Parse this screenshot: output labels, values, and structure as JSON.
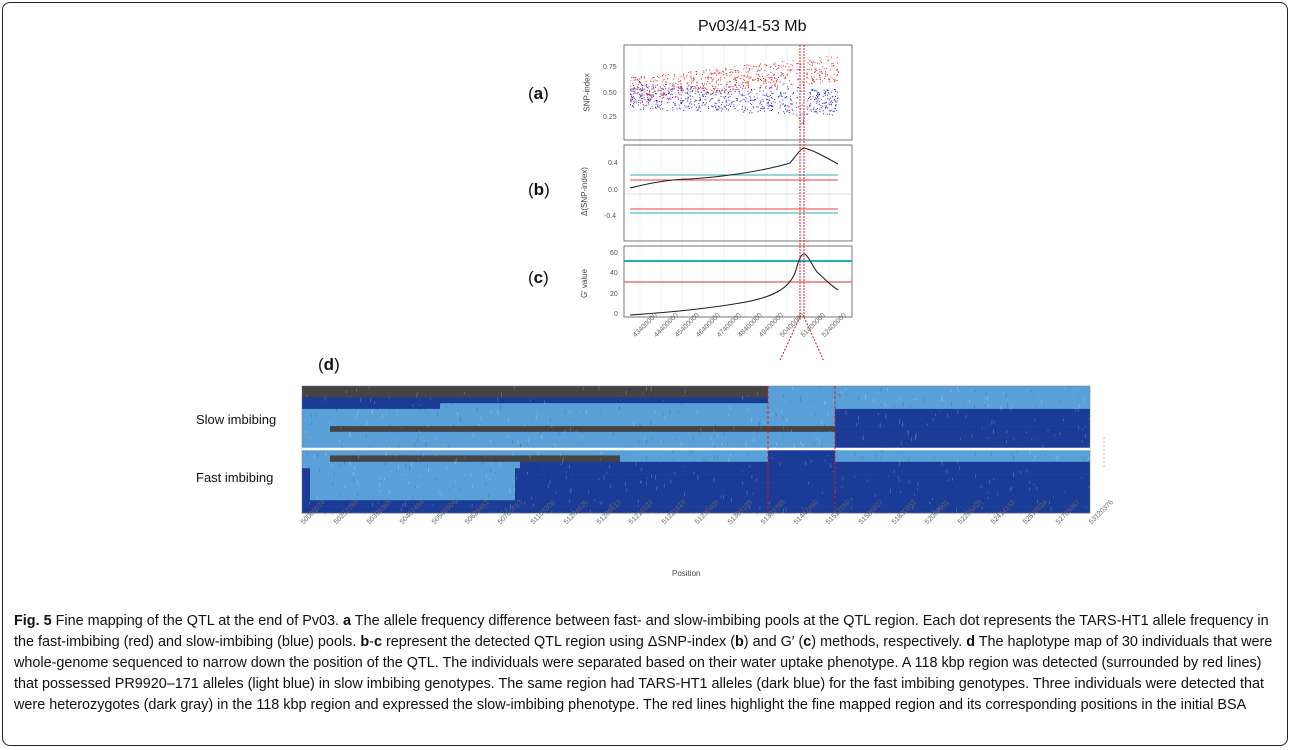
{
  "figure": {
    "title": "Pv03/41-53 Mb",
    "panels": {
      "a": "a",
      "b": "b",
      "c": "c",
      "d": "d"
    },
    "panel_a": {
      "ylabel": "SNP-index",
      "yticks": [
        "0.75",
        "0.50",
        "0.25"
      ]
    },
    "panel_b": {
      "ylabel": "Δ(SNP-index)",
      "yticks": [
        "0.4",
        "0.0",
        "-0.4"
      ]
    },
    "panel_c": {
      "ylabel": "G' value",
      "yticks": [
        "60",
        "40",
        "20",
        "0"
      ]
    },
    "panel_c_xticks": [
      "43400000",
      "44400000",
      "45400000",
      "46400000",
      "47400000",
      "48400000",
      "49400000",
      "50400000",
      "51400000",
      "52400000"
    ],
    "haplotype": {
      "group_slow": "Slow imbibing",
      "group_fast": "Fast imbibing",
      "xlabel": "Position",
      "positions": [
        "50000074",
        "50252789",
        "50395365",
        "50467484",
        "50545504",
        "50629451",
        "50760713",
        "51103306",
        "51204626",
        "51209613",
        "51216527",
        "51221618",
        "51230409",
        "51308105",
        "51393789",
        "51447460",
        "51512550",
        "51586927",
        "51830852",
        "52080901",
        "52295405",
        "52414152",
        "52578624",
        "52705067",
        "53120376"
      ],
      "colors": {
        "slow_allele": "#5aa0d8",
        "fast_allele": "#1b3c96",
        "heterozygote": "#444444",
        "region": "#d01818"
      }
    }
  },
  "caption": {
    "fig_label": "Fig. 5",
    "p1": " Fine mapping of the QTL at the end of Pv03. ",
    "l_a": "a",
    "p2": " The allele frequency difference between fast- and slow-imbibing pools at the QTL region. Each dot represents the TARS-HT1 allele frequency in the fast-imbibing (red) and slow-imbibing (blue) pools. ",
    "l_b": "b",
    "dash": "-",
    "l_c": "c",
    "p3": " represent the detected QTL region using ΔSNP-index (",
    "l_b2": "b",
    "p4": ") and G′ (",
    "l_c2": "c",
    "p5": ") methods, respectively. ",
    "l_d": "d",
    "p6": " The haplotype map of 30 individuals that were whole-genome sequenced to narrow down the position of the QTL. The individuals were separated based on their water uptake phenotype. A 118 kbp region was detected (surrounded by red lines) that possessed PR9920–171 alleles (light blue) in slow imbibing genotypes. The same region had TARS-HT1 alleles (dark blue) for the fast imbibing genotypes. Three individuals were detected that were heterozygotes (dark gray) in the 118 kbp region and expressed the slow-imbibing phenotype. The red lines highlight the fine mapped region and its corresponding positions in the initial BSA"
  }
}
